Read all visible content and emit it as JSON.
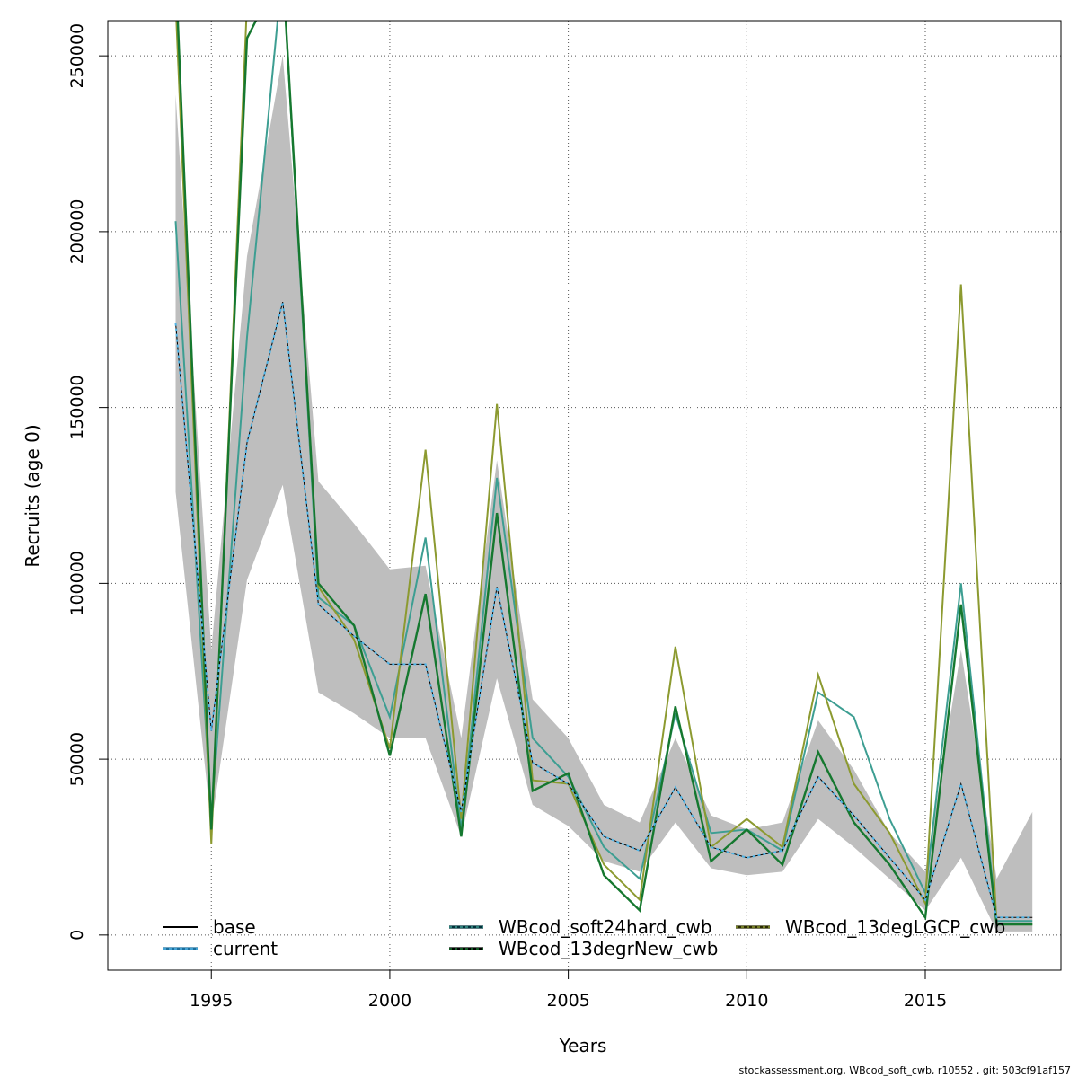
{
  "chart_data": {
    "type": "line",
    "xlabel": "Years",
    "ylabel": "Recruits (age 0)",
    "xlim": [
      1992.1,
      2018.8
    ],
    "ylim": [
      -10000,
      260000
    ],
    "x_ticks": [
      1995,
      2000,
      2005,
      2010,
      2015
    ],
    "x_tick_labels": [
      "1995",
      "2000",
      "2005",
      "2010",
      "2015"
    ],
    "y_ticks": [
      0,
      50000,
      100000,
      150000,
      200000,
      250000
    ],
    "y_tick_labels": [
      "0",
      "50000",
      "100000",
      "150000",
      "200000",
      "250000"
    ],
    "grid": true,
    "legend_position": "bottom",
    "x": [
      1994,
      1995,
      1996,
      1997,
      1998,
      1999,
      2000,
      2001,
      2002,
      2003,
      2004,
      2005,
      2006,
      2007,
      2008,
      2009,
      2010,
      2011,
      2012,
      2013,
      2014,
      2015,
      2016,
      2017,
      2018
    ],
    "confidence_band": {
      "color": "#bebebe",
      "upper": [
        239000,
        81000,
        193000,
        250000,
        129000,
        117000,
        104000,
        105000,
        56000,
        135000,
        67000,
        56000,
        37000,
        32000,
        56000,
        34000,
        30000,
        32000,
        61000,
        47000,
        29000,
        18000,
        81000,
        16000,
        35000
      ],
      "lower": [
        126000,
        31000,
        101000,
        128000,
        69000,
        63000,
        56000,
        56000,
        28000,
        73000,
        37000,
        31000,
        21000,
        18000,
        32000,
        19000,
        17000,
        18000,
        33000,
        25000,
        16000,
        7000,
        22000,
        1000,
        1000
      ]
    },
    "series": [
      {
        "name": "base",
        "color": "#000000",
        "dash": "",
        "values": [
          174000,
          58000,
          140000,
          180000,
          94000,
          85000,
          77000,
          77000,
          35000,
          99000,
          49000,
          43000,
          28000,
          24000,
          42000,
          25000,
          22000,
          24000,
          45000,
          34000,
          22000,
          10000,
          43000,
          5000,
          5000
        ]
      },
      {
        "name": "current",
        "color": "#4fb4e6",
        "dash": "3,3",
        "values": [
          174000,
          58000,
          140000,
          180000,
          94000,
          85000,
          77000,
          77000,
          35000,
          99000,
          49000,
          43000,
          28000,
          24000,
          42000,
          25000,
          22000,
          24000,
          45000,
          34000,
          22000,
          10000,
          43000,
          5000,
          5000
        ]
      },
      {
        "name": "WBcod_soft24hard_cwb",
        "color": "#3d9e92",
        "dash": "",
        "values": [
          203000,
          33000,
          170000,
          275000,
          96000,
          88000,
          62000,
          113000,
          30000,
          130000,
          56000,
          45000,
          25000,
          16000,
          63000,
          29000,
          30000,
          24000,
          69000,
          62000,
          33000,
          12000,
          100000,
          4000,
          4000
        ]
      },
      {
        "name": "WBcod_13degrNew_cwb",
        "color": "#15782f",
        "dash": "",
        "values": [
          275000,
          30000,
          255000,
          275000,
          100000,
          88000,
          51000,
          97000,
          28000,
          120000,
          41000,
          46000,
          17000,
          7000,
          65000,
          21000,
          30000,
          20000,
          52000,
          32000,
          20000,
          5000,
          94000,
          3000,
          3000
        ]
      },
      {
        "name": "WBcod_13degLGCP_cwb",
        "color": "#8c9a30",
        "dash": "",
        "values": [
          265000,
          26000,
          265000,
          275000,
          99000,
          84000,
          53000,
          138000,
          33000,
          151000,
          44000,
          43000,
          20000,
          10000,
          82000,
          25000,
          33000,
          25000,
          74000,
          43000,
          29000,
          9000,
          185000,
          3000,
          3000
        ]
      }
    ],
    "legend": [
      {
        "label": "base",
        "color": "#000000",
        "dash": "",
        "outline": ""
      },
      {
        "label": "current",
        "color": "#4fb4e6",
        "dash": "3,3",
        "outline": "#1a6e9c"
      },
      {
        "label": "WBcod_soft24hard_cwb",
        "color": "#3d9e92",
        "dash": "3,3",
        "outline": "#00313a"
      },
      {
        "label": "WBcod_13degrNew_cwb",
        "color": "#15782f",
        "dash": "3,3",
        "outline": "#000000"
      },
      {
        "label": "WBcod_13degLGCP_cwb",
        "color": "#8c9a30",
        "dash": "3,3",
        "outline": "#2a2a00"
      }
    ]
  },
  "footer": "stockassessment.org, WBcod_soft_cwb, r10552 , git: 503cf91af157"
}
